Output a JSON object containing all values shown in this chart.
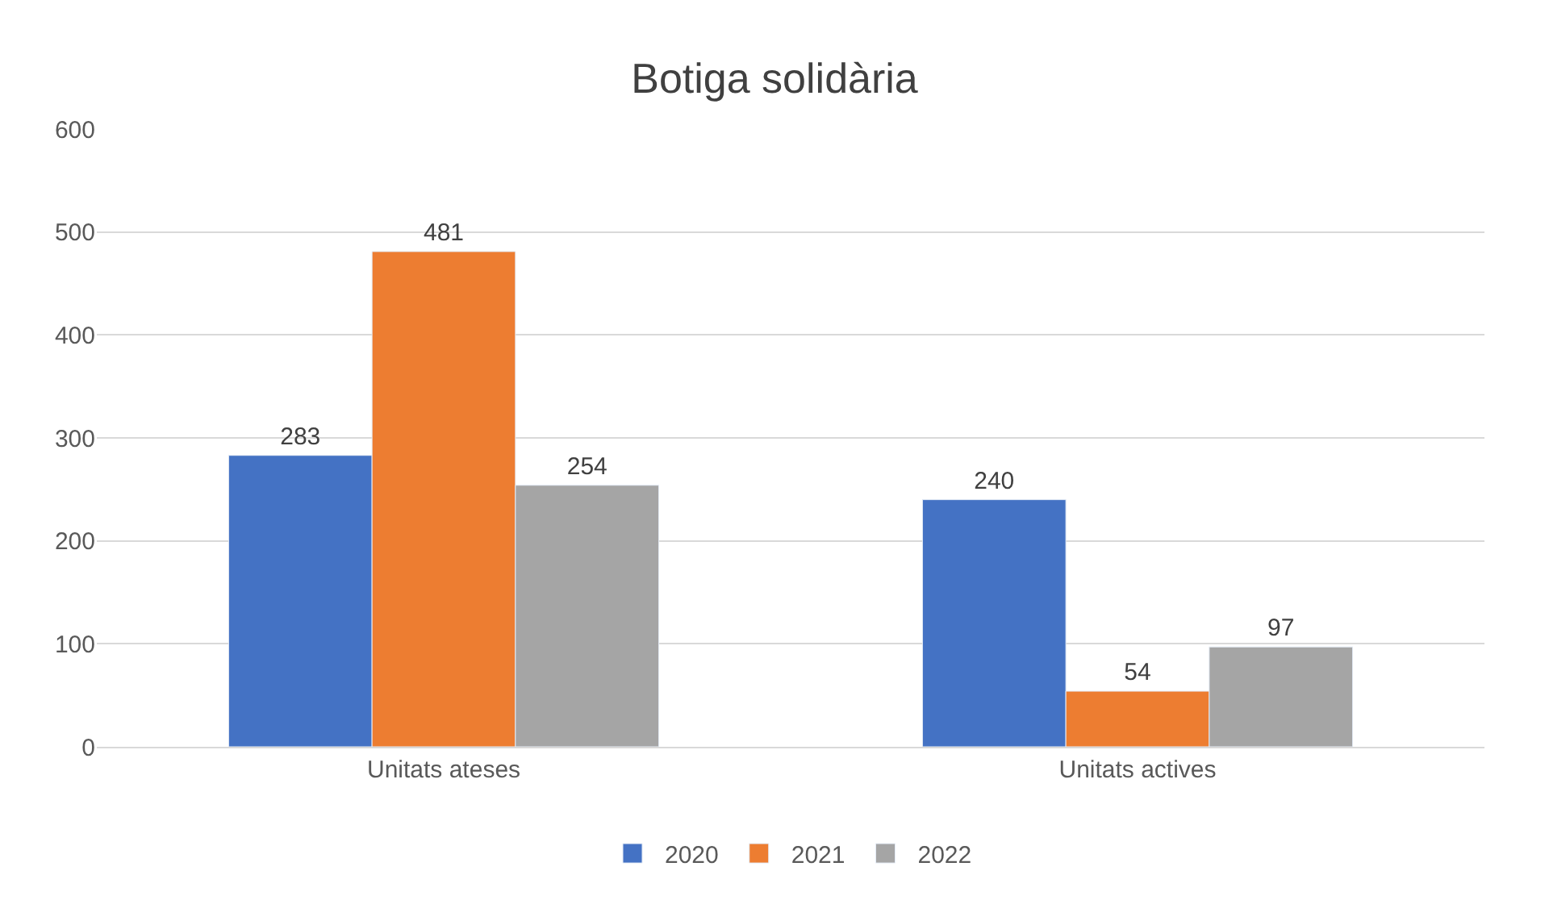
{
  "chart_data": {
    "type": "bar",
    "title": "Botiga solidària",
    "categories": [
      "Unitats ateses",
      "Unitats actives"
    ],
    "series": [
      {
        "name": "2020",
        "color": "#4472c4",
        "values": [
          283,
          240
        ]
      },
      {
        "name": "2021",
        "color": "#ed7d31",
        "values": [
          481,
          54
        ]
      },
      {
        "name": "2022",
        "color": "#a5a5a5",
        "values": [
          254,
          97
        ]
      }
    ],
    "ylim": [
      0,
      600
    ],
    "yticks": [
      0,
      100,
      200,
      300,
      400,
      500,
      600
    ],
    "grid": "y",
    "legend": "bottom",
    "data_labels": true
  }
}
